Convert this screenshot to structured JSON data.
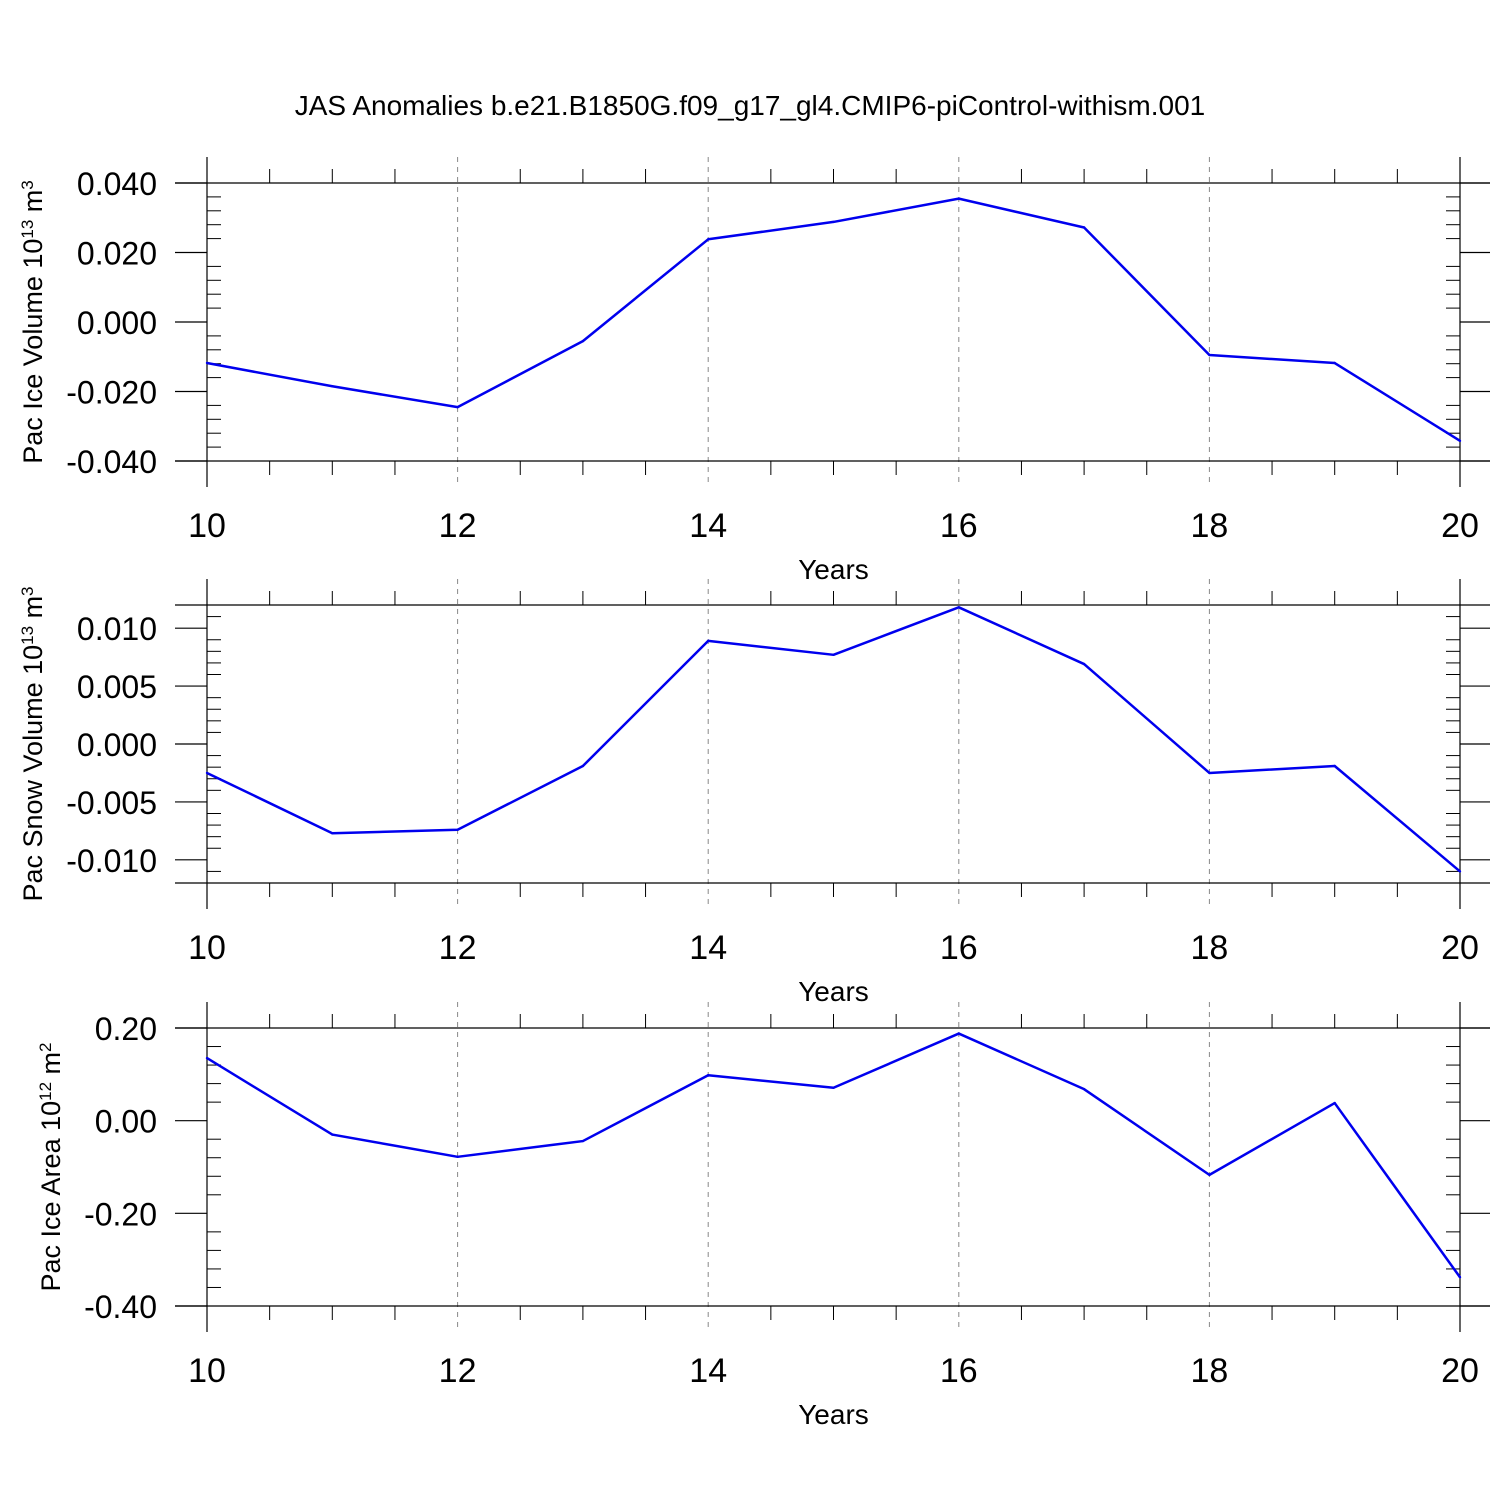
{
  "title": "JAS Anomalies b.e21.B1850G.f09_g17_gl4.CMIP6-piControl-withism.001",
  "colors": {
    "line": "#0000ee",
    "axis": "#000000",
    "grid": "#888888",
    "background": "#ffffff"
  },
  "chart_data": [
    {
      "type": "line",
      "xlabel": "Years",
      "ylabel_main": "Pac Ice Volume 10",
      "ylabel_exp": "13",
      "ylabel_unit": " m",
      "ylabel_unit_exp": "3",
      "xlim": [
        10,
        20
      ],
      "ylim": [
        -0.04,
        0.04
      ],
      "x_ticks": [
        10,
        12,
        14,
        16,
        18,
        20
      ],
      "x_tick_labels": [
        "10",
        "12",
        "14",
        "16",
        "18",
        "20"
      ],
      "y_ticks": [
        -0.04,
        -0.02,
        0.0,
        0.02,
        0.04
      ],
      "y_tick_labels": [
        "-0.040",
        "-0.020",
        "0.000",
        "0.020",
        "0.040"
      ],
      "x": [
        10,
        11,
        12,
        13,
        14,
        15,
        16,
        17,
        18,
        19,
        20
      ],
      "values": [
        -0.0118,
        -0.0185,
        -0.0245,
        -0.0055,
        0.0238,
        0.0288,
        0.0355,
        0.0272,
        -0.0095,
        -0.0118,
        -0.0342
      ]
    },
    {
      "type": "line",
      "xlabel": "Years",
      "ylabel_main": "Pac Snow Volume 10",
      "ylabel_exp": "13",
      "ylabel_unit": " m",
      "ylabel_unit_exp": "3",
      "xlim": [
        10,
        20
      ],
      "ylim": [
        -0.012,
        0.012
      ],
      "x_ticks": [
        10,
        12,
        14,
        16,
        18,
        20
      ],
      "x_tick_labels": [
        "10",
        "12",
        "14",
        "16",
        "18",
        "20"
      ],
      "y_ticks": [
        -0.01,
        -0.005,
        0.0,
        0.005,
        0.01
      ],
      "y_tick_labels": [
        "-0.010",
        "-0.005",
        "0.000",
        "0.005",
        "0.010"
      ],
      "x": [
        10,
        11,
        12,
        13,
        14,
        15,
        16,
        17,
        18,
        19,
        20
      ],
      "values": [
        -0.0025,
        -0.0077,
        -0.0074,
        -0.0019,
        0.0089,
        0.0077,
        0.0118,
        0.0069,
        -0.0025,
        -0.0019,
        -0.011
      ]
    },
    {
      "type": "line",
      "xlabel": "Years",
      "ylabel_main": "Pac Ice Area 10",
      "ylabel_exp": "12",
      "ylabel_unit": " m",
      "ylabel_unit_exp": "2",
      "xlim": [
        10,
        20
      ],
      "ylim": [
        -0.4,
        0.2
      ],
      "x_ticks": [
        10,
        12,
        14,
        16,
        18,
        20
      ],
      "x_tick_labels": [
        "10",
        "12",
        "14",
        "16",
        "18",
        "20"
      ],
      "y_ticks": [
        -0.4,
        -0.2,
        0.0,
        0.2
      ],
      "y_tick_labels": [
        "-0.40",
        "-0.20",
        "0.00",
        "0.20"
      ],
      "x": [
        10,
        11,
        12,
        13,
        14,
        15,
        16,
        17,
        18,
        19,
        20
      ],
      "values": [
        0.135,
        -0.03,
        -0.078,
        -0.044,
        0.098,
        0.071,
        0.188,
        0.068,
        -0.117,
        0.038,
        -0.338
      ]
    }
  ]
}
